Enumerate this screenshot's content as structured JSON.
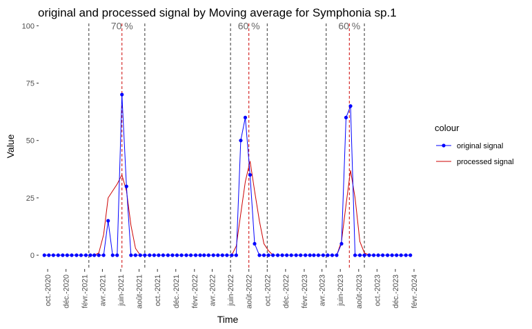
{
  "chart_data": {
    "type": "line",
    "title": "original and processed signal by Moving average for Symphonia sp.1",
    "xlabel": "Time",
    "ylabel": "Value",
    "xlim": [
      "2020-09-01",
      "2024-02-01"
    ],
    "ylim": [
      -6,
      101
    ],
    "y_ticks": [
      0,
      25,
      50,
      75,
      100
    ],
    "y_tick_labels": [
      "0",
      "25",
      "50",
      "75",
      "100"
    ],
    "x_ticks": [
      "2020-10-01",
      "2020-12-01",
      "2021-02-01",
      "2021-04-01",
      "2021-06-01",
      "2021-08-01",
      "2021-10-01",
      "2021-12-01",
      "2022-02-01",
      "2022-04-01",
      "2022-06-01",
      "2022-08-01",
      "2022-10-01",
      "2022-12-01",
      "2023-02-01",
      "2023-04-01",
      "2023-06-01",
      "2023-08-01",
      "2023-10-01",
      "2023-12-01",
      "2024-02-01"
    ],
    "x_tick_labels": [
      "oct.-2020",
      "déc.-2020",
      "févr.-2021",
      "avr.-2021",
      "juin-2021",
      "août-2021",
      "oct.-2021",
      "déc.-2021",
      "févr.-2022",
      "avr.-2022",
      "juin-2022",
      "août-2022",
      "oct.-2022",
      "déc.-2022",
      "févr.-2023",
      "avr.-2023",
      "juin-2023",
      "août-2023",
      "oct.-2023",
      "déc.-2023",
      "févr.-2024"
    ],
    "grid": false,
    "legend": {
      "title": "colour",
      "position": "right"
    },
    "series": [
      {
        "name": "original signal",
        "color": "#0000ff",
        "marker": "point",
        "x": [
          "2020-09-20",
          "2020-10-05",
          "2020-10-20",
          "2020-11-05",
          "2020-11-20",
          "2020-12-05",
          "2020-12-20",
          "2021-01-05",
          "2021-01-20",
          "2021-02-05",
          "2021-02-20",
          "2021-03-05",
          "2021-03-20",
          "2021-04-05",
          "2021-04-20",
          "2021-05-05",
          "2021-05-20",
          "2021-06-05",
          "2021-06-20",
          "2021-07-05",
          "2021-07-20",
          "2021-08-05",
          "2021-08-20",
          "2021-09-05",
          "2021-09-20",
          "2021-10-05",
          "2021-10-20",
          "2021-11-05",
          "2021-11-20",
          "2021-12-05",
          "2021-12-20",
          "2022-01-05",
          "2022-01-20",
          "2022-02-05",
          "2022-02-20",
          "2022-03-05",
          "2022-03-20",
          "2022-04-05",
          "2022-04-20",
          "2022-05-05",
          "2022-05-20",
          "2022-06-05",
          "2022-06-20",
          "2022-07-05",
          "2022-07-20",
          "2022-08-05",
          "2022-08-20",
          "2022-09-05",
          "2022-09-20",
          "2022-10-05",
          "2022-10-20",
          "2022-11-05",
          "2022-11-20",
          "2022-12-05",
          "2022-12-20",
          "2023-01-05",
          "2023-01-20",
          "2023-02-05",
          "2023-02-20",
          "2023-03-05",
          "2023-03-20",
          "2023-04-05",
          "2023-04-20",
          "2023-05-05",
          "2023-05-20",
          "2023-06-05",
          "2023-06-20",
          "2023-07-05",
          "2023-07-20",
          "2023-08-05",
          "2023-08-20",
          "2023-09-05",
          "2023-09-20",
          "2023-10-05",
          "2023-10-20",
          "2023-11-05",
          "2023-11-20",
          "2023-12-05",
          "2023-12-20",
          "2024-01-05",
          "2024-01-20"
        ],
        "y": [
          0,
          0,
          0,
          0,
          0,
          0,
          0,
          0,
          0,
          0,
          0,
          0,
          0,
          0,
          15,
          0,
          0,
          70,
          30,
          0,
          0,
          0,
          0,
          0,
          0,
          0,
          0,
          0,
          0,
          0,
          0,
          0,
          0,
          0,
          0,
          0,
          0,
          0,
          0,
          0,
          0,
          0,
          0,
          50,
          60,
          35,
          5,
          0,
          0,
          0,
          0,
          0,
          0,
          0,
          0,
          0,
          0,
          0,
          0,
          0,
          0,
          0,
          0,
          0,
          0,
          5,
          60,
          65,
          0,
          0,
          0,
          0,
          0,
          0,
          0,
          0,
          0,
          0,
          0,
          0,
          0
        ]
      },
      {
        "name": "processed signal",
        "color": "#cc0000",
        "marker": "none",
        "x": [
          "2020-09-20",
          "2020-10-05",
          "2020-10-20",
          "2020-11-05",
          "2020-11-20",
          "2020-12-05",
          "2020-12-20",
          "2021-01-05",
          "2021-01-20",
          "2021-02-05",
          "2021-02-20",
          "2021-03-05",
          "2021-03-20",
          "2021-04-05",
          "2021-04-20",
          "2021-05-05",
          "2021-05-20",
          "2021-06-05",
          "2021-06-20",
          "2021-07-05",
          "2021-07-20",
          "2021-08-05",
          "2021-08-20",
          "2021-09-05",
          "2021-09-20",
          "2021-10-05",
          "2021-10-20",
          "2021-11-05",
          "2021-11-20",
          "2021-12-05",
          "2021-12-20",
          "2022-01-05",
          "2022-01-20",
          "2022-02-05",
          "2022-02-20",
          "2022-03-05",
          "2022-03-20",
          "2022-04-05",
          "2022-04-20",
          "2022-05-05",
          "2022-05-20",
          "2022-06-05",
          "2022-06-20",
          "2022-07-05",
          "2022-07-20",
          "2022-08-05",
          "2022-08-20",
          "2022-09-05",
          "2022-09-20",
          "2022-10-05",
          "2022-10-20",
          "2022-11-05",
          "2022-11-20",
          "2022-12-05",
          "2022-12-20",
          "2023-01-05",
          "2023-01-20",
          "2023-02-05",
          "2023-02-20",
          "2023-03-05",
          "2023-03-20",
          "2023-04-05",
          "2023-04-20",
          "2023-05-05",
          "2023-05-20",
          "2023-06-05",
          "2023-06-20",
          "2023-07-05",
          "2023-07-20",
          "2023-08-05",
          "2023-08-20",
          "2023-09-05",
          "2023-09-20",
          "2023-10-05",
          "2023-10-20",
          "2023-11-05",
          "2023-11-20",
          "2023-12-05",
          "2023-12-20",
          "2024-01-05",
          "2024-01-20"
        ],
        "y": [
          0,
          0,
          0,
          0,
          0,
          0,
          0,
          0,
          0,
          0,
          0,
          0,
          1,
          9,
          25,
          28,
          31,
          35,
          28,
          13,
          3,
          0,
          0,
          0,
          0,
          0,
          0,
          0,
          0,
          0,
          0,
          0,
          0,
          0,
          0,
          0,
          0,
          0,
          0,
          0,
          0,
          0,
          4,
          18,
          32,
          41,
          28,
          15,
          5,
          2,
          0,
          0,
          0,
          0,
          0,
          0,
          0,
          0,
          0,
          0,
          0,
          0,
          0,
          0,
          0,
          6,
          22,
          37,
          25,
          6,
          1,
          0,
          0,
          0,
          0,
          0,
          0,
          0,
          0,
          0,
          0
        ]
      }
    ],
    "vlines_red": [
      "2021-06-05",
      "2022-08-01",
      "2023-07-01"
    ],
    "vlines_black": [
      "2021-02-15",
      "2021-08-20",
      "2022-06-01",
      "2022-10-01",
      "2023-04-15",
      "2023-08-20"
    ],
    "annotations": [
      {
        "text": "70 %",
        "x": "2021-06-05",
        "y": 100
      },
      {
        "text": "60 %",
        "x": "2022-08-01",
        "y": 100
      },
      {
        "text": "60 %",
        "x": "2023-07-01",
        "y": 100
      }
    ]
  }
}
